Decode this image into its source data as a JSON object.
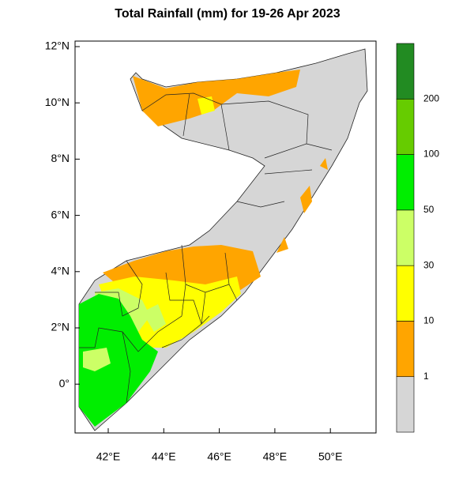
{
  "title": "Total Rainfall (mm) for 19-26 Apr 2023",
  "map": {
    "lat_labels": [
      "12°N",
      "10°N",
      "8°N",
      "6°N",
      "4°N",
      "2°N",
      "0°"
    ],
    "lon_labels": [
      "42°E",
      "44°E",
      "46°E",
      "48°E",
      "50°E"
    ]
  },
  "legend": {
    "labels": [
      "1",
      "10",
      "30",
      "50",
      "100",
      "200"
    ],
    "colors": [
      "#d6d6d6",
      "#ffa500",
      "#ffff00",
      "#ccff66",
      "#00ee00",
      "#66cc00",
      "#228b22"
    ]
  }
}
